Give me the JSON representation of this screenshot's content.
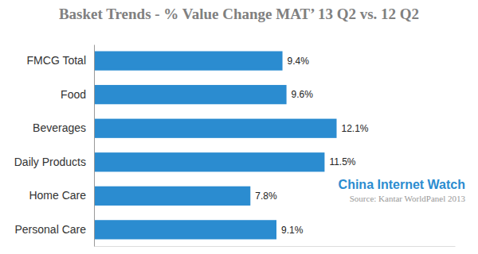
{
  "chart_data": {
    "type": "bar",
    "orientation": "horizontal",
    "title": "Basket Trends - % Value Change MAT’ 13 Q2 vs. 12 Q2",
    "categories": [
      "FMCG Total",
      "Food",
      "Beverages",
      "Daily Products",
      "Home Care",
      "Personal Care"
    ],
    "values": [
      9.4,
      9.6,
      12.1,
      11.5,
      7.8,
      9.1
    ],
    "value_labels": [
      "9.4%",
      "9.6%",
      "12.1%",
      "11.5%",
      "7.8%",
      "9.1%"
    ],
    "color": "#2b8cd0",
    "xlim": [
      0,
      18
    ],
    "tick_labels": "y",
    "grid": false,
    "data_labels": true,
    "annotations": [
      "China Internet Watch",
      "Source: Kantar WorldPanel 2013"
    ]
  }
}
